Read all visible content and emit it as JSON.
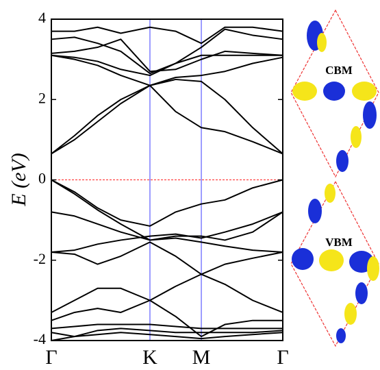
{
  "chart_data": {
    "type": "line",
    "ylabel": "E (eV)",
    "x": [
      0,
      0.1,
      0.2,
      0.3,
      0.426,
      0.537,
      0.648,
      0.75,
      0.87,
      1
    ],
    "xlim": [
      0,
      1
    ],
    "xticks": [
      {
        "value": 0,
        "label": "Γ"
      },
      {
        "value": 0.426,
        "label": "K"
      },
      {
        "value": 0.648,
        "label": "M"
      },
      {
        "value": 1,
        "label": "Γ"
      }
    ],
    "ylim": [
      -4,
      4
    ],
    "yticks": [
      -4,
      -2,
      0,
      2,
      4
    ],
    "color": "#000000",
    "xgrid": true,
    "xgrid_color": "#3b3bff",
    "hline": 0,
    "hline_color": "#ff2020",
    "series": [
      {
        "values": [
          0.65,
          1.1,
          1.6,
          2.0,
          2.35,
          1.7,
          1.3,
          1.2,
          0.95,
          0.65
        ]
      },
      {
        "values": [
          3.1,
          3.0,
          2.85,
          2.6,
          2.35,
          2.5,
          2.45,
          2.0,
          1.3,
          0.65
        ]
      },
      {
        "values": [
          0.65,
          1.0,
          1.45,
          1.9,
          2.35,
          2.55,
          2.6,
          2.7,
          2.9,
          3.05
        ]
      },
      {
        "values": [
          3.1,
          3.05,
          2.95,
          2.75,
          2.6,
          2.9,
          3.1,
          3.1,
          3.1,
          3.1
        ]
      },
      {
        "values": [
          3.15,
          3.2,
          3.3,
          3.5,
          2.7,
          2.75,
          3.0,
          3.2,
          3.15,
          3.1
        ]
      },
      {
        "values": [
          3.5,
          3.55,
          3.4,
          3.2,
          2.65,
          2.9,
          3.3,
          3.75,
          3.6,
          3.5
        ]
      },
      {
        "values": [
          3.7,
          3.7,
          3.8,
          3.65,
          3.8,
          3.7,
          3.4,
          3.8,
          3.8,
          3.7
        ]
      },
      {
        "values": [
          0,
          -0.3,
          -0.7,
          -1.0,
          -1.15,
          -0.8,
          -0.6,
          -0.5,
          -0.2,
          0
        ]
      },
      {
        "values": [
          0,
          -0.35,
          -0.75,
          -1.1,
          -1.5,
          -1.4,
          -1.4,
          -1.5,
          -1.3,
          -0.8
        ]
      },
      {
        "values": [
          -0.8,
          -0.9,
          -1.1,
          -1.3,
          -1.5,
          -1.45,
          -1.55,
          -1.65,
          -1.75,
          -1.8
        ]
      },
      {
        "values": [
          -1.8,
          -1.75,
          -1.6,
          -1.5,
          -1.4,
          -1.35,
          -1.45,
          -1.3,
          -1.1,
          -0.8
        ]
      },
      {
        "values": [
          -1.8,
          -1.85,
          -2.1,
          -1.9,
          -1.55,
          -1.9,
          -2.35,
          -2.1,
          -1.95,
          -1.8
        ]
      },
      {
        "values": [
          -3.3,
          -3.0,
          -2.7,
          -2.7,
          -3.0,
          -2.65,
          -2.35,
          -2.6,
          -3.0,
          -3.3
        ]
      },
      {
        "values": [
          -3.5,
          -3.3,
          -3.2,
          -3.3,
          -3.0,
          -3.4,
          -3.9,
          -3.6,
          -3.5,
          -3.5
        ]
      },
      {
        "values": [
          -3.7,
          -3.65,
          -3.6,
          -3.6,
          -3.6,
          -3.65,
          -3.7,
          -3.7,
          -3.7,
          -3.7
        ]
      },
      {
        "values": [
          -3.8,
          -3.9,
          -3.75,
          -3.7,
          -3.75,
          -3.8,
          -3.8,
          -3.8,
          -3.8,
          -3.75
        ]
      },
      {
        "values": [
          -4.0,
          -3.9,
          -3.85,
          -3.8,
          -3.85,
          -3.9,
          -3.95,
          -3.9,
          -3.85,
          -3.8
        ]
      }
    ]
  },
  "insets": [
    {
      "label": "CBM"
    },
    {
      "label": "VBM"
    }
  ]
}
